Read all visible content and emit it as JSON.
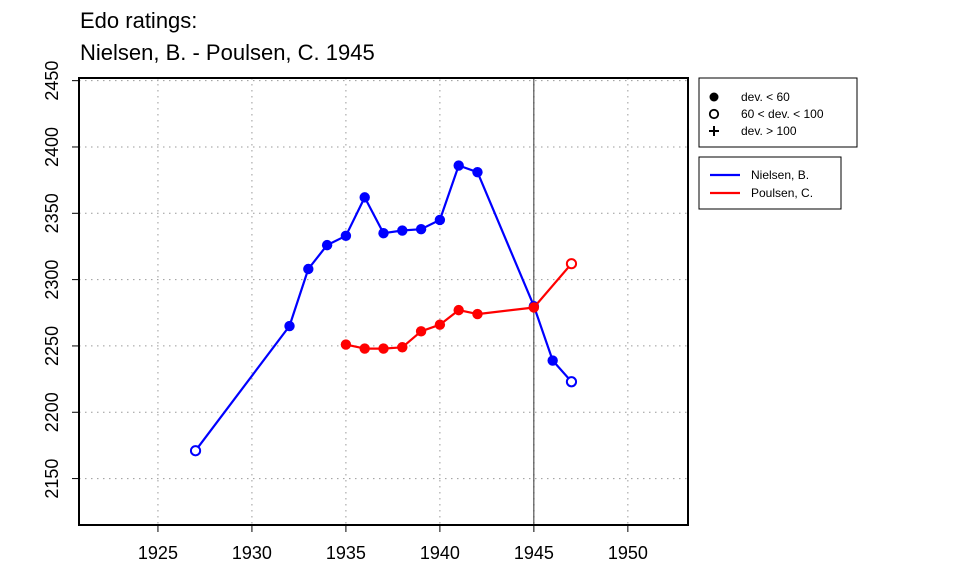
{
  "chart_data": {
    "type": "line",
    "title_lines": [
      "Edo ratings:",
      "Nielsen, B. - Poulsen, C. 1945"
    ],
    "xlabel": "",
    "ylabel": "",
    "xlim": [
      1920.8,
      1953.2
    ],
    "ylim": [
      2115,
      2452
    ],
    "x_ticks": [
      1925,
      1930,
      1935,
      1940,
      1945,
      1950
    ],
    "y_ticks": [
      2150,
      2200,
      2250,
      2300,
      2350,
      2400,
      2450
    ],
    "grid": "dotted",
    "reference_line_x": 1945,
    "marker_legend": [
      {
        "symbol": "filled-circle",
        "label": "dev. < 60"
      },
      {
        "symbol": "open-circle",
        "label": "60 < dev. < 100"
      },
      {
        "symbol": "plus",
        "label": "dev. > 100"
      }
    ],
    "series": [
      {
        "name": "Nielsen, B.",
        "color": "#0000ff",
        "points": [
          {
            "x": 1927,
            "y": 2171,
            "marker": "open-circle"
          },
          {
            "x": 1932,
            "y": 2265,
            "marker": "filled-circle"
          },
          {
            "x": 1933,
            "y": 2308,
            "marker": "filled-circle"
          },
          {
            "x": 1934,
            "y": 2326,
            "marker": "filled-circle"
          },
          {
            "x": 1935,
            "y": 2333,
            "marker": "filled-circle"
          },
          {
            "x": 1936,
            "y": 2362,
            "marker": "filled-circle"
          },
          {
            "x": 1937,
            "y": 2335,
            "marker": "filled-circle"
          },
          {
            "x": 1938,
            "y": 2337,
            "marker": "filled-circle"
          },
          {
            "x": 1939,
            "y": 2338,
            "marker": "filled-circle"
          },
          {
            "x": 1940,
            "y": 2345,
            "marker": "filled-circle"
          },
          {
            "x": 1941,
            "y": 2386,
            "marker": "filled-circle"
          },
          {
            "x": 1942,
            "y": 2381,
            "marker": "filled-circle"
          },
          {
            "x": 1945,
            "y": 2280,
            "marker": "filled-circle"
          },
          {
            "x": 1946,
            "y": 2239,
            "marker": "filled-circle"
          },
          {
            "x": 1947,
            "y": 2223,
            "marker": "open-circle"
          }
        ]
      },
      {
        "name": "Poulsen, C.",
        "color": "#ff0000",
        "points": [
          {
            "x": 1935,
            "y": 2251,
            "marker": "filled-circle"
          },
          {
            "x": 1936,
            "y": 2248,
            "marker": "filled-circle"
          },
          {
            "x": 1937,
            "y": 2248,
            "marker": "filled-circle"
          },
          {
            "x": 1938,
            "y": 2249,
            "marker": "filled-circle"
          },
          {
            "x": 1939,
            "y": 2261,
            "marker": "filled-circle"
          },
          {
            "x": 1940,
            "y": 2266,
            "marker": "filled-circle"
          },
          {
            "x": 1941,
            "y": 2277,
            "marker": "filled-circle"
          },
          {
            "x": 1942,
            "y": 2274,
            "marker": "filled-circle"
          },
          {
            "x": 1945,
            "y": 2279,
            "marker": "filled-circle"
          },
          {
            "x": 1947,
            "y": 2312,
            "marker": "open-circle"
          }
        ]
      }
    ]
  }
}
